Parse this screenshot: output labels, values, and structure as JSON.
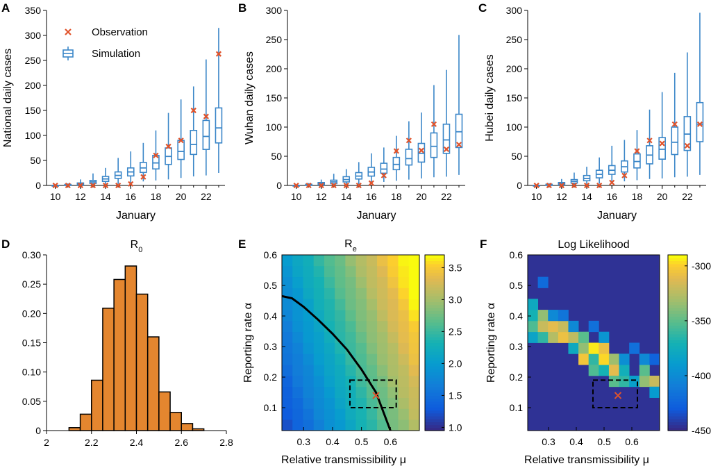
{
  "panel_letters": [
    "A",
    "B",
    "C",
    "D",
    "E",
    "F"
  ],
  "legend": {
    "observation": "Observation",
    "simulation": "Simulation"
  },
  "colors": {
    "box": "#3a86c8",
    "obs": "#e0532b",
    "bar": "#e4862f",
    "bar_edge": "#000000",
    "curve": "#000000"
  },
  "chart_data": [
    {
      "type": "box",
      "panel": "A",
      "xlabel": "January",
      "ylabel": "National daily cases",
      "xlim": [
        9.3,
        23.5
      ],
      "ylim": [
        0,
        350
      ],
      "xticks": [
        10,
        12,
        14,
        16,
        18,
        20,
        22
      ],
      "yticks": [
        0,
        50,
        100,
        150,
        200,
        250,
        300,
        350
      ],
      "x": [
        10,
        11,
        12,
        13,
        14,
        15,
        16,
        17,
        18,
        19,
        20,
        21,
        22,
        23
      ],
      "boxes": [
        {
          "whislo": 0,
          "q1": 0,
          "med": 0,
          "q3": 0,
          "whishi": 1
        },
        {
          "whislo": 0,
          "q1": 0,
          "med": 1,
          "q3": 2,
          "whishi": 4
        },
        {
          "whislo": 0,
          "q1": 1,
          "med": 3,
          "q3": 5,
          "whishi": 12
        },
        {
          "whislo": 0,
          "q1": 4,
          "med": 7,
          "q3": 10,
          "whishi": 24
        },
        {
          "whislo": 2,
          "q1": 8,
          "med": 13,
          "q3": 18,
          "whishi": 35
        },
        {
          "whislo": 3,
          "q1": 14,
          "med": 20,
          "q3": 27,
          "whishi": 55
        },
        {
          "whislo": 5,
          "q1": 19,
          "med": 27,
          "q3": 35,
          "whishi": 68
        },
        {
          "whislo": 8,
          "q1": 26,
          "med": 35,
          "q3": 46,
          "whishi": 85
        },
        {
          "whislo": 10,
          "q1": 33,
          "med": 45,
          "q3": 60,
          "whishi": 110
        },
        {
          "whislo": 12,
          "q1": 42,
          "med": 58,
          "q3": 75,
          "whishi": 145
        },
        {
          "whislo": 15,
          "q1": 52,
          "med": 68,
          "q3": 90,
          "whishi": 172
        },
        {
          "whislo": 18,
          "q1": 62,
          "med": 82,
          "q3": 110,
          "whishi": 198
        },
        {
          "whislo": 20,
          "q1": 72,
          "med": 98,
          "q3": 130,
          "whishi": 252
        },
        {
          "whislo": 25,
          "q1": 85,
          "med": 115,
          "q3": 155,
          "whishi": 315
        }
      ],
      "observations": [
        0,
        0,
        0,
        0,
        0,
        0,
        3,
        17,
        60,
        78,
        90,
        150,
        138,
        263
      ]
    },
    {
      "type": "box",
      "panel": "B",
      "xlabel": "January",
      "ylabel": "Wuhan daily cases",
      "xlim": [
        9.3,
        23.5
      ],
      "ylim": [
        0,
        300
      ],
      "xticks": [
        10,
        12,
        14,
        16,
        18,
        20,
        22
      ],
      "yticks": [
        0,
        50,
        100,
        150,
        200,
        250,
        300
      ],
      "x": [
        10,
        11,
        12,
        13,
        14,
        15,
        16,
        17,
        18,
        19,
        20,
        21,
        22,
        23
      ],
      "boxes": [
        {
          "whislo": 0,
          "q1": 0,
          "med": 0,
          "q3": 0,
          "whishi": 1
        },
        {
          "whislo": 0,
          "q1": 0,
          "med": 1,
          "q3": 2,
          "whishi": 4
        },
        {
          "whislo": 0,
          "q1": 1,
          "med": 3,
          "q3": 5,
          "whishi": 10
        },
        {
          "whislo": 0,
          "q1": 3,
          "med": 6,
          "q3": 9,
          "whishi": 20
        },
        {
          "whislo": 1,
          "q1": 6,
          "med": 10,
          "q3": 15,
          "whishi": 28
        },
        {
          "whislo": 2,
          "q1": 11,
          "med": 16,
          "q3": 22,
          "whishi": 40
        },
        {
          "whislo": 4,
          "q1": 16,
          "med": 23,
          "q3": 31,
          "whishi": 55
        },
        {
          "whislo": 6,
          "q1": 21,
          "med": 28,
          "q3": 38,
          "whishi": 65
        },
        {
          "whislo": 8,
          "q1": 27,
          "med": 36,
          "q3": 48,
          "whishi": 85
        },
        {
          "whislo": 10,
          "q1": 35,
          "med": 46,
          "q3": 62,
          "whishi": 110
        },
        {
          "whislo": 12,
          "q1": 40,
          "med": 55,
          "q3": 72,
          "whishi": 125
        },
        {
          "whislo": 14,
          "q1": 48,
          "med": 67,
          "q3": 90,
          "whishi": 172
        },
        {
          "whislo": 15,
          "q1": 55,
          "med": 78,
          "q3": 105,
          "whishi": 198
        },
        {
          "whislo": 18,
          "q1": 65,
          "med": 92,
          "q3": 122,
          "whishi": 258
        }
      ],
      "observations": [
        0,
        0,
        0,
        0,
        0,
        0,
        4,
        17,
        59,
        77,
        60,
        105,
        62,
        70
      ]
    },
    {
      "type": "box",
      "panel": "C",
      "xlabel": "January",
      "ylabel": "Hubei daily cases",
      "xlim": [
        9.3,
        23.5
      ],
      "ylim": [
        0,
        300
      ],
      "xticks": [
        10,
        12,
        14,
        16,
        18,
        20,
        22
      ],
      "yticks": [
        0,
        50,
        100,
        150,
        200,
        250,
        300
      ],
      "x": [
        10,
        11,
        12,
        13,
        14,
        15,
        16,
        17,
        18,
        19,
        20,
        21,
        22,
        23
      ],
      "boxes": [
        {
          "whislo": 0,
          "q1": 0,
          "med": 0,
          "q3": 0,
          "whishi": 1
        },
        {
          "whislo": 0,
          "q1": 0,
          "med": 1,
          "q3": 2,
          "whishi": 4
        },
        {
          "whislo": 0,
          "q1": 1,
          "med": 3,
          "q3": 5,
          "whishi": 11
        },
        {
          "whislo": 0,
          "q1": 4,
          "med": 7,
          "q3": 10,
          "whishi": 22
        },
        {
          "whislo": 2,
          "q1": 8,
          "med": 12,
          "q3": 17,
          "whishi": 32
        },
        {
          "whislo": 3,
          "q1": 13,
          "med": 19,
          "q3": 26,
          "whishi": 48
        },
        {
          "whislo": 5,
          "q1": 19,
          "med": 26,
          "q3": 34,
          "whishi": 68
        },
        {
          "whislo": 7,
          "q1": 23,
          "med": 32,
          "q3": 42,
          "whishi": 78
        },
        {
          "whislo": 9,
          "q1": 30,
          "med": 41,
          "q3": 54,
          "whishi": 95
        },
        {
          "whislo": 11,
          "q1": 37,
          "med": 52,
          "q3": 68,
          "whishi": 130
        },
        {
          "whislo": 12,
          "q1": 45,
          "med": 62,
          "q3": 82,
          "whishi": 160
        },
        {
          "whislo": 14,
          "q1": 53,
          "med": 74,
          "q3": 100,
          "whishi": 193
        },
        {
          "whislo": 15,
          "q1": 60,
          "med": 88,
          "q3": 118,
          "whishi": 228
        },
        {
          "whislo": 18,
          "q1": 75,
          "med": 105,
          "q3": 142,
          "whishi": 296
        }
      ],
      "observations": [
        0,
        0,
        0,
        0,
        0,
        0,
        5,
        17,
        59,
        77,
        72,
        105,
        68,
        105
      ]
    },
    {
      "type": "bar",
      "panel": "D",
      "title": "R",
      "title_sub": "0",
      "xlim": [
        2.0,
        2.8
      ],
      "ylim": [
        0,
        0.3
      ],
      "xticks": [
        2,
        2.2,
        2.4,
        2.6,
        2.8
      ],
      "xtick_labels": [
        "2",
        "2.2",
        "2.4",
        "2.6",
        "2.8"
      ],
      "yticks": [
        0,
        0.05,
        0.1,
        0.15,
        0.2,
        0.25,
        0.3
      ],
      "ytick_labels": [
        "0",
        "0.05",
        "0.10",
        "0.15",
        "0.20",
        "0.25",
        "0.30"
      ],
      "bin_width": 0.05,
      "bin_centers": [
        2.075,
        2.125,
        2.175,
        2.225,
        2.275,
        2.325,
        2.375,
        2.425,
        2.475,
        2.525,
        2.575,
        2.625,
        2.675,
        2.725
      ],
      "values": [
        0.0,
        0.005,
        0.028,
        0.086,
        0.209,
        0.258,
        0.281,
        0.233,
        0.16,
        0.066,
        0.031,
        0.012,
        0.003,
        0.0
      ]
    },
    {
      "type": "heatmap",
      "panel": "E",
      "title": "R",
      "title_sub": "e",
      "xlabel": "Relative transmissibility μ",
      "ylabel": "Reporting rate α",
      "xlim": [
        0.225,
        0.7
      ],
      "ylim": [
        0.025,
        0.6
      ],
      "xticks": [
        0.3,
        0.4,
        0.5,
        0.6
      ],
      "xtick_labels": [
        "0.3",
        "0.4",
        "0.5",
        "0.6"
      ],
      "yticks": [
        0.1,
        0.2,
        0.3,
        0.4,
        0.5,
        0.6
      ],
      "ytick_labels": [
        "0.1",
        "0.2",
        "0.3",
        "0.4",
        "0.5",
        "0.6"
      ],
      "colorbar": {
        "range": [
          0.95,
          3.7
        ],
        "ticks": [
          1.0,
          1.5,
          2.0,
          2.5,
          3.0,
          3.5
        ],
        "tick_labels": [
          "1.0",
          "1.5",
          "2.0",
          "2.5",
          "3.0",
          "3.5"
        ]
      },
      "curve": [
        [
          0.225,
          0.465
        ],
        [
          0.26,
          0.458
        ],
        [
          0.3,
          0.43
        ],
        [
          0.35,
          0.388
        ],
        [
          0.4,
          0.342
        ],
        [
          0.45,
          0.29
        ],
        [
          0.5,
          0.225
        ],
        [
          0.55,
          0.15
        ],
        [
          0.6,
          0.025
        ]
      ],
      "marker": [
        0.55,
        0.14
      ],
      "box_region": {
        "x": [
          0.46,
          0.62
        ],
        "y": [
          0.1,
          0.19
        ]
      }
    },
    {
      "type": "heatmap",
      "panel": "F",
      "title": "Log Likelihood",
      "xlabel": "Relative transmissibility μ",
      "ylabel": "Reporting rate α",
      "xlim": [
        0.225,
        0.7
      ],
      "ylim": [
        0.025,
        0.6
      ],
      "xticks": [
        0.3,
        0.4,
        0.5,
        0.6
      ],
      "xtick_labels": [
        "0.3",
        "0.4",
        "0.5",
        "0.6"
      ],
      "yticks": [
        0.1,
        0.2,
        0.3,
        0.4,
        0.5,
        0.6
      ],
      "ytick_labels": [
        "0.1",
        "0.2",
        "0.3",
        "0.4",
        "0.5",
        "0.6"
      ],
      "colorbar": {
        "range": [
          -450,
          -290
        ],
        "ticks": [
          -300,
          -350,
          -400,
          -450
        ],
        "tick_labels": [
          "-300",
          "-350",
          "-400",
          "-450"
        ]
      },
      "marker": [
        0.55,
        0.14
      ],
      "box_region": {
        "x": [
          0.46,
          0.62
        ],
        "y": [
          0.1,
          0.19
        ]
      }
    }
  ]
}
